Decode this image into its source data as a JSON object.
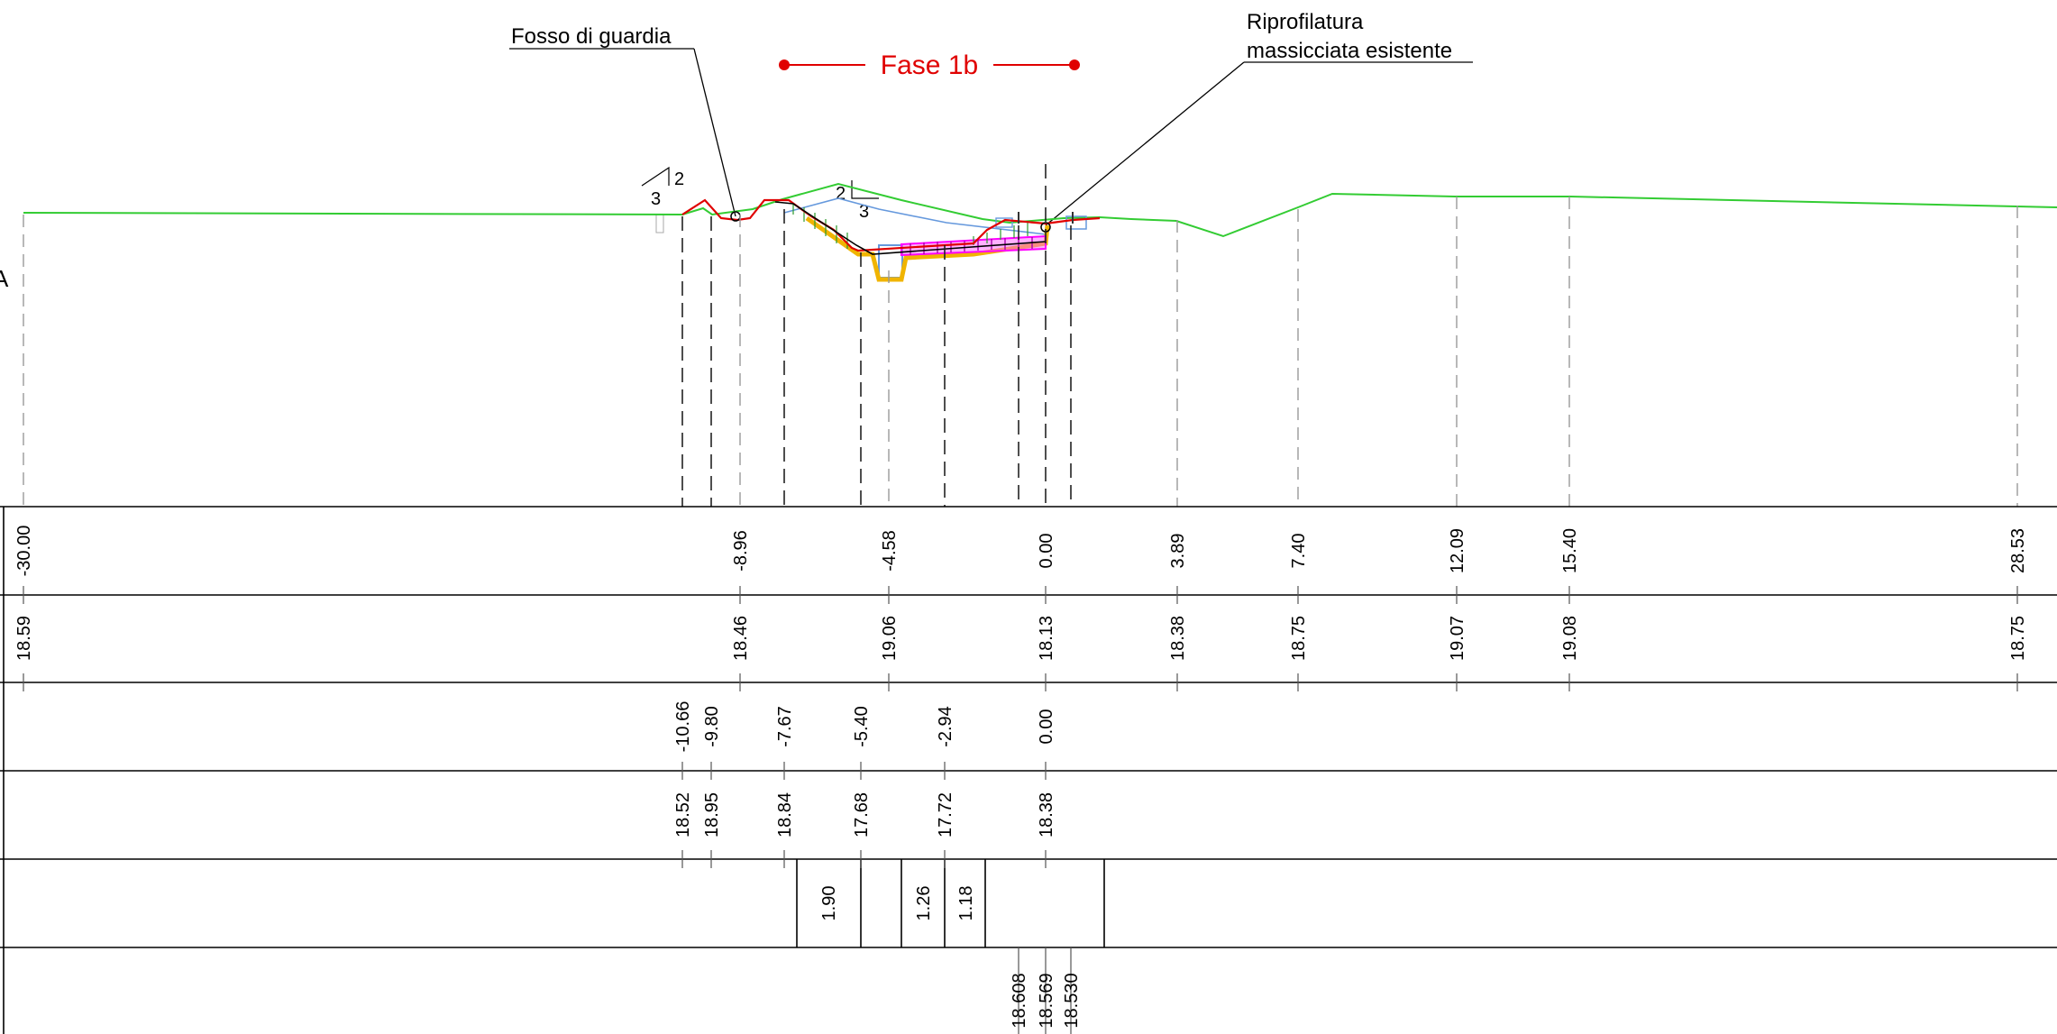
{
  "labels": {
    "left_note": "Fosso di guardia",
    "phase_title": "Fase 1b",
    "right_note_line1": "Riprofilatura",
    "right_note_line2": "massicciata esistente",
    "edge_letter": "A"
  },
  "slope_left": {
    "rise": "2",
    "run": "3"
  },
  "slope_mid": {
    "rise": "2",
    "run": "3"
  },
  "table": {
    "row_distances": [
      "-30.00",
      "-8.96",
      "-4.58",
      "0.00",
      "3.89",
      "7.40",
      "12.09",
      "15.40",
      "28.53"
    ],
    "row_terrain": [
      "18.59",
      "18.46",
      "19.06",
      "18.13",
      "18.38",
      "18.75",
      "19.07",
      "19.08",
      "18.75"
    ],
    "row_project_distances": [
      "-10.66",
      "-9.80",
      "-7.67",
      "-5.40",
      "-2.94",
      "0.00"
    ],
    "row_project_elevations": [
      "18.52",
      "18.95",
      "18.84",
      "17.68",
      "17.72",
      "18.38"
    ],
    "row_widths": [
      "1.90",
      "1.26",
      "1.18"
    ],
    "row_rail_levels": [
      "18.608",
      "18.569",
      "18.530"
    ]
  },
  "colors": {
    "terrain": "#33cc33",
    "project": "#e00000",
    "phase": "#e00000",
    "ballast": "#ff33ff",
    "water": "#6699dd",
    "foundation": "#f0b400",
    "grid": "#000000"
  }
}
